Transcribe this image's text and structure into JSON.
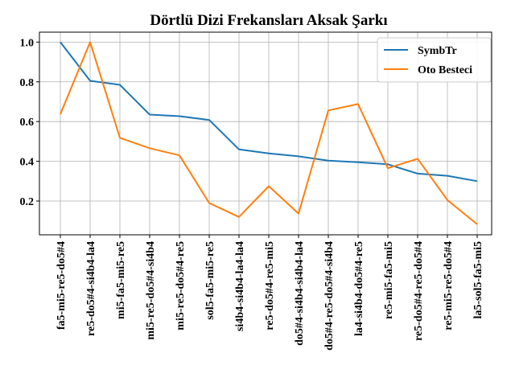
{
  "chart_data": {
    "type": "line",
    "title": "Dörtlü Dizi Frekansları Aksak Şarkı",
    "xlabel": "",
    "ylabel": "",
    "categories": [
      "fa5-mi5-re5-do5#4",
      "re5-do5#4-si4b4-la4",
      "mi5-fa5-mi5-re5",
      "mi5-re5-do5#4-si4b4",
      "mi5-re5-do5#4-re5",
      "sol5-fa5-mi5-re5",
      "si4b4-si4b4-la4-la4",
      "re5-do5#4-re5-mi5",
      "do5#4-si4b4-si4b4-la4",
      "do5#4-re5-do5#4-si4b4",
      "la4-si4b4-do5#4-re5",
      "re5-mi5-fa5-mi5",
      "re5-do5#4-re5-do5#4",
      "re5-mi5-re5-do5#4",
      "la5-sol5-fa5-mi5"
    ],
    "series": [
      {
        "name": "SymbTr",
        "color": "#1f77b4",
        "values": [
          1.0,
          0.805,
          0.785,
          0.635,
          0.627,
          0.608,
          0.46,
          0.44,
          0.425,
          0.403,
          0.395,
          0.385,
          0.338,
          0.327,
          0.3
        ]
      },
      {
        "name": "Oto Besteci",
        "color": "#ff7f0e",
        "values": [
          0.637,
          1.0,
          0.518,
          0.466,
          0.43,
          0.19,
          0.12,
          0.275,
          0.137,
          0.656,
          0.688,
          0.365,
          0.413,
          0.205,
          0.083
        ]
      }
    ],
    "ylim": [
      0.03,
      1.05
    ],
    "yticks": [
      0.2,
      0.4,
      0.6,
      0.8,
      1.0
    ],
    "ytick_labels": [
      "0.2",
      "0.4",
      "0.6",
      "0.8",
      "1.0"
    ],
    "grid": true,
    "legend_position": "top-right"
  }
}
